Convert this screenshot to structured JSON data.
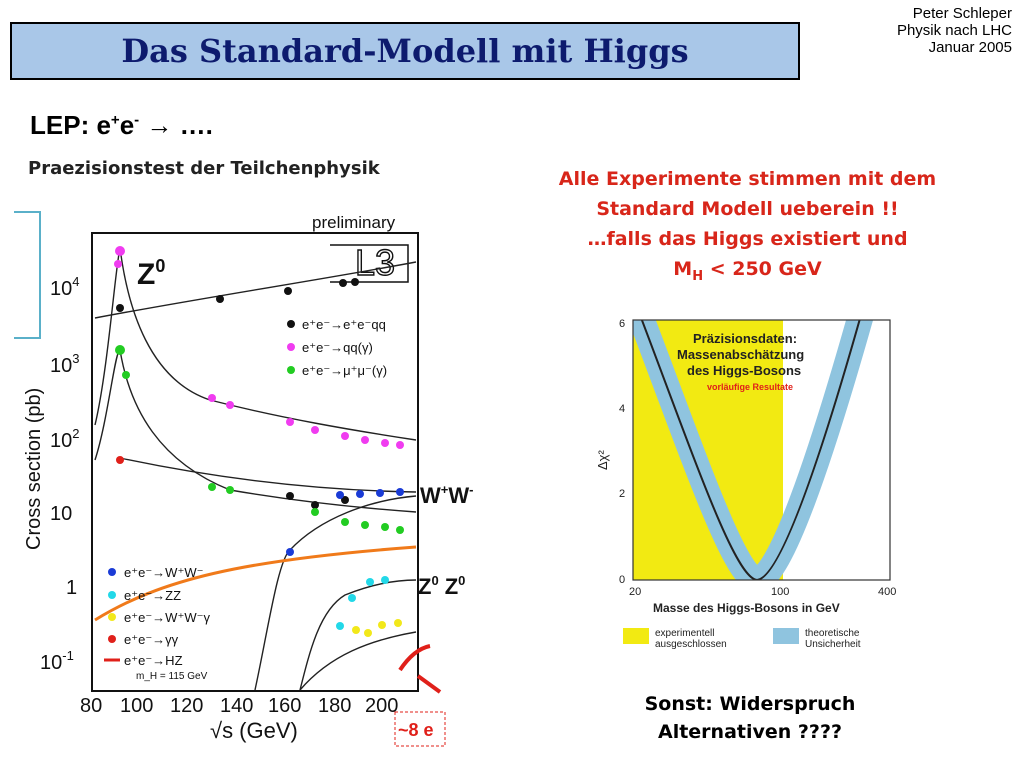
{
  "header": {
    "title": "Das Standard-Modell mit Higgs",
    "author_lines": [
      "Peter Schleper",
      "Physik nach LHC",
      "Januar 2005"
    ]
  },
  "lep": {
    "prefix": "LEP: e",
    "sup1": "+",
    "mid": "e",
    "sup2": "-",
    "arrow": "→",
    "suffix": " …."
  },
  "subheading": "Praezisionstest der Teilchenphysik",
  "statement": {
    "lines": [
      "Alle Experimente stimmen mit dem",
      "Standard Modell ueberein !!",
      "…falls das Higgs existiert und"
    ],
    "mass_prefix": "M",
    "mass_sub": "H",
    "mass_suffix": " < 250 GeV"
  },
  "conclusion": {
    "lines": [
      "Sonst: Widerspruch",
      "Alternativen ????"
    ]
  },
  "cross_section_plot": {
    "tag": "preliminary",
    "experiment": "L3",
    "ylabel": "Cross section (pb)",
    "xlabel": "√s (GeV)",
    "x_ticks": [
      "80",
      "100",
      "120",
      "140",
      "160",
      "180",
      "200"
    ],
    "y_ticks": [
      {
        "base": "10",
        "exp": "4"
      },
      {
        "base": "10",
        "exp": "3"
      },
      {
        "base": "10",
        "exp": "2"
      },
      {
        "base": "10",
        "exp": ""
      },
      {
        "base": "1",
        "exp": ""
      },
      {
        "base": "10",
        "exp": "-1"
      }
    ],
    "legend_top": [
      "e⁺e⁻→e⁺e⁻qq",
      "e⁺e⁻→qq(γ)",
      "e⁺e⁻→μ⁺μ⁻(γ)"
    ],
    "legend_bottom": [
      "e⁺e⁻→W⁺W⁻",
      "e⁺e⁻→ZZ",
      "e⁺e⁻→W⁺W⁻γ",
      "e⁺e⁻→γγ",
      "e⁺e⁻→HZ"
    ],
    "legend_note": "m_H = 115 GeV",
    "label_z0": "Z",
    "label_z0_sup": "0",
    "label_ww": "W",
    "label_ww_sup1": "+",
    "label_ww_mid": "W",
    "label_ww_sup2": "-",
    "label_zz": "Z",
    "label_zz_sup": "0",
    "label_zz2": "Z",
    "label_zz2_sup": "0",
    "corner_text": "~8 e",
    "colors": {
      "black": "#111111",
      "magenta": "#f03cf0",
      "green": "#22cc22",
      "blue": "#1a3bd6",
      "cyan": "#22d8e8",
      "yellow": "#f2e81a",
      "red": "#e0201a",
      "orange": "#f07a1a"
    }
  },
  "higgs_plot": {
    "box_title": [
      "Präzisionsdaten:",
      "Massenabschätzung",
      "des Higgs-Bosons"
    ],
    "box_note": "vorläufige Resultate",
    "ylabel": "Δχ²",
    "xlabel": "Masse des Higgs-Bosons in GeV",
    "y_ticks": [
      "0",
      "2",
      "4",
      "6"
    ],
    "x_ticks": [
      "20",
      "100",
      "400"
    ],
    "legend": [
      {
        "label_lines": [
          "experimentell",
          "ausgeschlossen"
        ],
        "color": "#f2ea12"
      },
      {
        "label_lines": [
          "theoretische",
          "Unsicherheit"
        ],
        "color": "#8fc4df"
      }
    ]
  }
}
